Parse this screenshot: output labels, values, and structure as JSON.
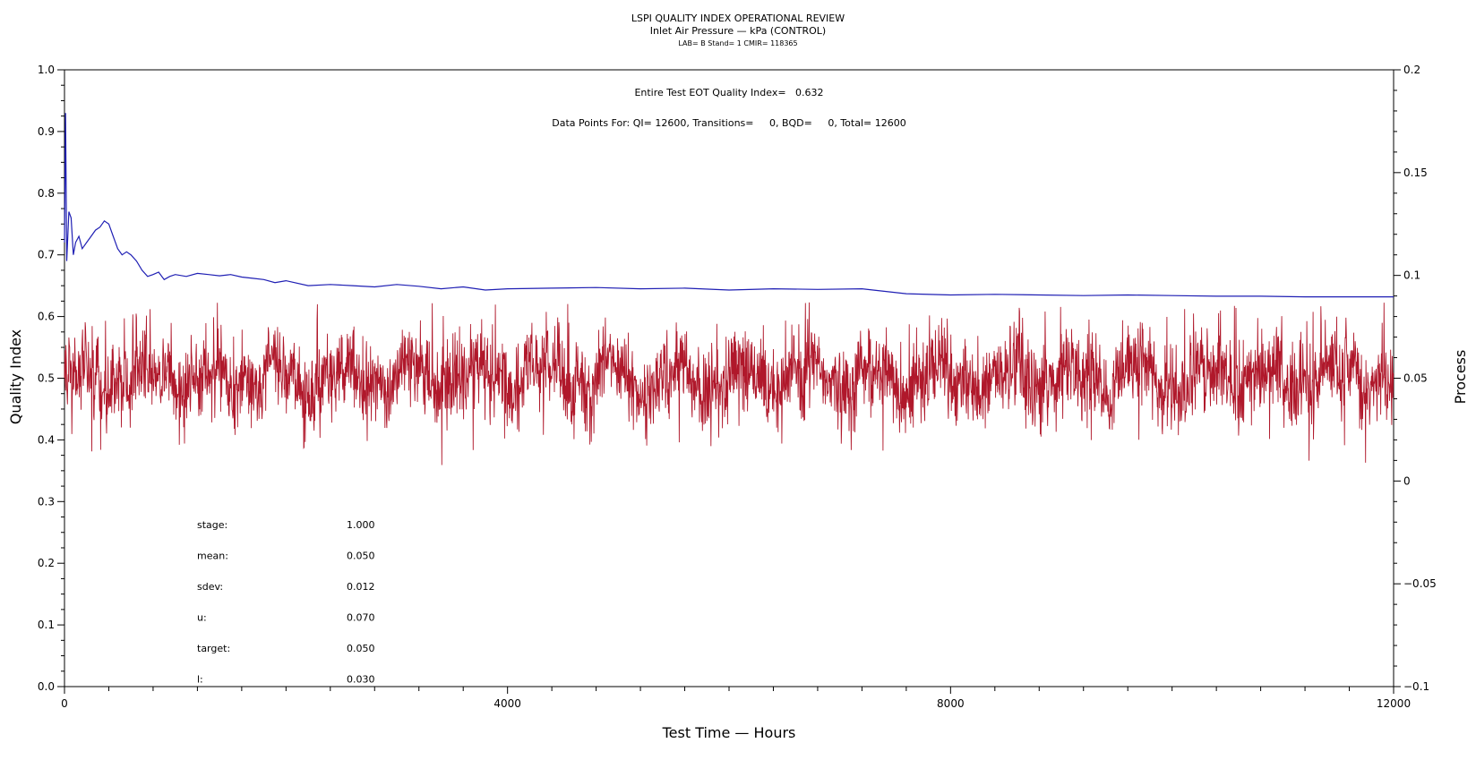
{
  "chart_data": {
    "type": "line",
    "title": "LSPI QUALITY INDEX OPERATIONAL REVIEW",
    "subtitle": "Inlet Air Pressure — kPa (CONTROL)",
    "subsubtitle": "LAB= B Stand= 1 CMIR= 118365",
    "annotations": {
      "eot": "Entire Test EOT Quality Index=   0.632",
      "points": "Data Points For: QI= 12600, Transitions=     0, BQD=     0, Total= 12600"
    },
    "xlabel": "Test Time — Hours",
    "ylabel_left": "Quality Index",
    "ylabel_right": "Process",
    "xlim": [
      0,
      12000
    ],
    "ylim_left": [
      0.0,
      1.0
    ],
    "ylim_right": [
      -0.1,
      0.2
    ],
    "x_ticks": [
      0,
      4000,
      8000,
      12000
    ],
    "x_tick_labels": [
      "0",
      "4000",
      "8000",
      "12000"
    ],
    "y_left_ticks": [
      0.0,
      0.1,
      0.2,
      0.3,
      0.4,
      0.5,
      0.6,
      0.7,
      0.8,
      0.9,
      1.0
    ],
    "y_left_tick_labels": [
      "0.0",
      "0.1",
      "0.2",
      "0.3",
      "0.4",
      "0.5",
      "0.6",
      "0.7",
      "0.8",
      "0.9",
      "1.0"
    ],
    "y_right_ticks": [
      -0.1,
      -0.05,
      0,
      0.05,
      0.1,
      0.15,
      0.2
    ],
    "y_right_tick_labels": [
      "−0.1",
      "−0.05",
      "0",
      "0.05",
      "0.1",
      "0.15",
      "0.2"
    ],
    "stats": [
      {
        "label": "stage:",
        "value": "1.000"
      },
      {
        "label": "mean:",
        "value": "0.050"
      },
      {
        "label": "sdev:",
        "value": "0.012"
      },
      {
        "label": "u:",
        "value": "0.070"
      },
      {
        "label": "target:",
        "value": "0.050"
      },
      {
        "label": "l:",
        "value": "0.030"
      }
    ],
    "series": [
      {
        "axis": "left",
        "color": "#1f1fb4",
        "x": [
          0,
          10,
          20,
          30,
          40,
          60,
          80,
          100,
          130,
          160,
          200,
          240,
          280,
          320,
          360,
          400,
          440,
          480,
          520,
          560,
          600,
          650,
          700,
          750,
          800,
          850,
          900,
          950,
          1000,
          1100,
          1200,
          1300,
          1400,
          1500,
          1600,
          1700,
          1800,
          1900,
          2000,
          2200,
          2400,
          2600,
          2800,
          3000,
          3200,
          3400,
          3600,
          3800,
          4000,
          4400,
          4800,
          5200,
          5600,
          6000,
          6400,
          6800,
          7200,
          7600,
          8000,
          8400,
          8800,
          9200,
          9600,
          10000,
          10400,
          10800,
          11200,
          11600,
          12000
        ],
        "values": [
          0.72,
          0.93,
          0.69,
          0.73,
          0.77,
          0.76,
          0.7,
          0.72,
          0.73,
          0.71,
          0.72,
          0.73,
          0.74,
          0.745,
          0.755,
          0.75,
          0.73,
          0.71,
          0.7,
          0.705,
          0.7,
          0.69,
          0.675,
          0.665,
          0.668,
          0.672,
          0.66,
          0.665,
          0.668,
          0.665,
          0.67,
          0.668,
          0.666,
          0.668,
          0.664,
          0.662,
          0.66,
          0.655,
          0.658,
          0.65,
          0.652,
          0.65,
          0.648,
          0.652,
          0.649,
          0.645,
          0.648,
          0.643,
          0.645,
          0.646,
          0.647,
          0.645,
          0.646,
          0.643,
          0.645,
          0.644,
          0.645,
          0.637,
          0.635,
          0.636,
          0.635,
          0.634,
          0.635,
          0.634,
          0.633,
          0.633,
          0.632,
          0.632,
          0.632
        ]
      },
      {
        "axis": "right",
        "color": "#b0182b",
        "style": "dense noisy process trace centered on 0.05 (mean 0.050, sdev 0.012), 12600 points",
        "x": [
          0,
          600,
          1200,
          1800,
          2400,
          3000,
          3600,
          4200,
          4800,
          5400,
          6000,
          6600,
          7200,
          7800,
          8400,
          9000,
          9600,
          10200,
          10800,
          11400,
          12000
        ],
        "values": [
          0.05,
          0.05,
          0.05,
          0.05,
          0.05,
          0.05,
          0.05,
          0.05,
          0.05,
          0.05,
          0.05,
          0.05,
          0.05,
          0.05,
          0.05,
          0.05,
          0.05,
          0.05,
          0.05,
          0.05,
          0.05
        ]
      }
    ]
  }
}
